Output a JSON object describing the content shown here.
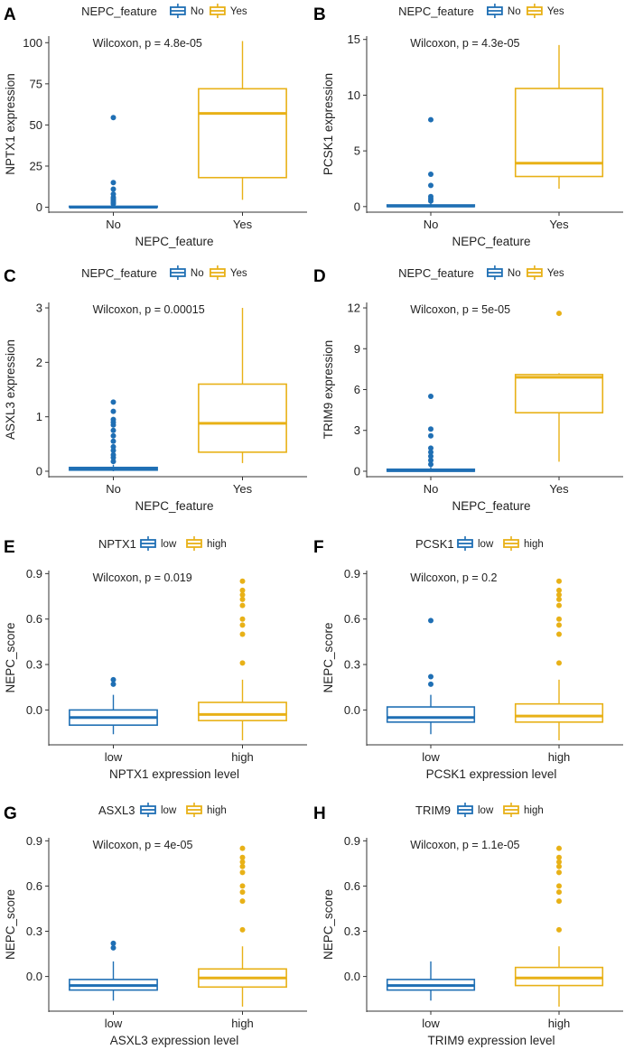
{
  "colors": {
    "group1": "#1f6fb4",
    "group2": "#e8b117",
    "axis": "#333333",
    "text": "#222222"
  },
  "chart_data": [
    {
      "type": "box",
      "panel_label": "A",
      "legend": {
        "title": "NEPC_feature",
        "entries": [
          "No",
          "Yes"
        ]
      },
      "annotation": "Wilcoxon, p = 4.8e-05",
      "xlabel": "NEPC_feature",
      "ylabel": "NPTX1 expression",
      "categories": [
        "No",
        "Yes"
      ],
      "ylim": [
        -3,
        104
      ],
      "yticks": [
        0,
        25,
        50,
        75,
        100
      ],
      "boxes": [
        {
          "q1": 0,
          "median": 0,
          "q3": 0.6,
          "whisker_low": 0,
          "whisker_high": 1.2,
          "outliers": [
            2,
            3,
            4,
            5,
            6,
            8,
            11,
            15,
            54.5
          ]
        },
        {
          "q1": 18,
          "median": 57,
          "q3": 72,
          "whisker_low": 4.5,
          "whisker_high": 101,
          "outliers": []
        }
      ]
    },
    {
      "type": "box",
      "panel_label": "B",
      "legend": {
        "title": "NEPC_feature",
        "entries": [
          "No",
          "Yes"
        ]
      },
      "annotation": "Wilcoxon, p = 4.3e-05",
      "xlabel": "NEPC_feature",
      "ylabel": "PCSK1 expression",
      "categories": [
        "No",
        "Yes"
      ],
      "ylim": [
        -0.5,
        15.3
      ],
      "yticks": [
        0,
        5,
        10,
        15
      ],
      "boxes": [
        {
          "q1": 0,
          "median": 0.05,
          "q3": 0.15,
          "whisker_low": 0,
          "whisker_high": 0.3,
          "outliers": [
            0.5,
            0.7,
            0.9,
            1.9,
            2.9,
            7.8
          ]
        },
        {
          "q1": 2.7,
          "median": 3.9,
          "q3": 10.6,
          "whisker_low": 1.6,
          "whisker_high": 14.5,
          "outliers": []
        }
      ]
    },
    {
      "type": "box",
      "panel_label": "C",
      "legend": {
        "title": "NEPC_feature",
        "entries": [
          "No",
          "Yes"
        ]
      },
      "annotation": "Wilcoxon, p = 0.00015",
      "xlabel": "NEPC_feature",
      "ylabel": "ASXL3 expression",
      "categories": [
        "No",
        "Yes"
      ],
      "ylim": [
        -0.1,
        3.1
      ],
      "yticks": [
        0,
        1,
        2,
        3
      ],
      "boxes": [
        {
          "q1": 0.02,
          "median": 0.04,
          "q3": 0.07,
          "whisker_low": 0,
          "whisker_high": 0.12,
          "outliers": [
            0.18,
            0.25,
            0.3,
            0.38,
            0.45,
            0.55,
            0.65,
            0.75,
            0.85,
            0.9,
            0.95,
            1.1,
            1.27
          ]
        },
        {
          "q1": 0.35,
          "median": 0.88,
          "q3": 1.6,
          "whisker_low": 0.15,
          "whisker_high": 3.0,
          "outliers": []
        }
      ]
    },
    {
      "type": "box",
      "panel_label": "D",
      "legend": {
        "title": "NEPC_feature",
        "entries": [
          "No",
          "Yes"
        ]
      },
      "annotation": "Wilcoxon, p = 5e-05",
      "xlabel": "NEPC_feature",
      "ylabel": "TRIM9 expression",
      "categories": [
        "No",
        "Yes"
      ],
      "ylim": [
        -0.4,
        12.4
      ],
      "yticks": [
        0,
        3,
        6,
        9,
        12
      ],
      "boxes": [
        {
          "q1": 0,
          "median": 0.05,
          "q3": 0.15,
          "whisker_low": 0,
          "whisker_high": 0.3,
          "outliers": [
            0.5,
            0.8,
            1.1,
            1.4,
            1.7,
            2.6,
            3.1,
            5.5
          ]
        },
        {
          "q1": 4.3,
          "median": 6.9,
          "q3": 7.1,
          "whisker_low": 0.7,
          "whisker_high": 7.2,
          "outliers": [
            11.6
          ]
        }
      ]
    },
    {
      "type": "box",
      "panel_label": "E",
      "legend": {
        "title": "NPTX1",
        "entries": [
          "low",
          "high"
        ]
      },
      "annotation": "Wilcoxon, p = 0.019",
      "xlabel": "NPTX1 expression level",
      "ylabel": "NEPC_score",
      "categories": [
        "low",
        "high"
      ],
      "ylim": [
        -0.23,
        0.92
      ],
      "yticks": [
        0.0,
        0.3,
        0.6,
        0.9
      ],
      "ytick_labels": [
        "0.0",
        "0.3",
        "0.6",
        "0.9"
      ],
      "boxes": [
        {
          "q1": -0.1,
          "median": -0.05,
          "q3": 0.0,
          "whisker_low": -0.16,
          "whisker_high": 0.1,
          "outliers": [
            0.17,
            0.2
          ]
        },
        {
          "q1": -0.07,
          "median": -0.03,
          "q3": 0.05,
          "whisker_low": -0.2,
          "whisker_high": 0.2,
          "outliers": [
            0.31,
            0.5,
            0.56,
            0.6,
            0.69,
            0.73,
            0.76,
            0.79,
            0.85
          ]
        }
      ]
    },
    {
      "type": "box",
      "panel_label": "F",
      "legend": {
        "title": "PCSK1",
        "entries": [
          "low",
          "high"
        ]
      },
      "annotation": "Wilcoxon, p = 0.2",
      "xlabel": "PCSK1 expression level",
      "ylabel": "NEPC_score",
      "categories": [
        "low",
        "high"
      ],
      "ylim": [
        -0.23,
        0.92
      ],
      "yticks": [
        0.0,
        0.3,
        0.6,
        0.9
      ],
      "ytick_labels": [
        "0.0",
        "0.3",
        "0.6",
        "0.9"
      ],
      "boxes": [
        {
          "q1": -0.08,
          "median": -0.05,
          "q3": 0.02,
          "whisker_low": -0.16,
          "whisker_high": 0.1,
          "outliers": [
            0.17,
            0.22,
            0.59
          ]
        },
        {
          "q1": -0.08,
          "median": -0.04,
          "q3": 0.04,
          "whisker_low": -0.2,
          "whisker_high": 0.2,
          "outliers": [
            0.31,
            0.5,
            0.56,
            0.6,
            0.69,
            0.73,
            0.76,
            0.79,
            0.85
          ]
        }
      ]
    },
    {
      "type": "box",
      "panel_label": "G",
      "legend": {
        "title": "ASXL3",
        "entries": [
          "low",
          "high"
        ]
      },
      "annotation": "Wilcoxon, p = 4e-05",
      "xlabel": "ASXL3 expression level",
      "ylabel": "NEPC_score",
      "categories": [
        "low",
        "high"
      ],
      "ylim": [
        -0.23,
        0.92
      ],
      "yticks": [
        0.0,
        0.3,
        0.6,
        0.9
      ],
      "ytick_labels": [
        "0.0",
        "0.3",
        "0.6",
        "0.9"
      ],
      "boxes": [
        {
          "q1": -0.09,
          "median": -0.06,
          "q3": -0.02,
          "whisker_low": -0.16,
          "whisker_high": 0.1,
          "outliers": [
            0.19,
            0.22
          ]
        },
        {
          "q1": -0.07,
          "median": -0.01,
          "q3": 0.05,
          "whisker_low": -0.2,
          "whisker_high": 0.2,
          "outliers": [
            0.31,
            0.5,
            0.56,
            0.6,
            0.69,
            0.73,
            0.76,
            0.79,
            0.85
          ]
        }
      ]
    },
    {
      "type": "box",
      "panel_label": "H",
      "legend": {
        "title": "TRIM9",
        "entries": [
          "low",
          "high"
        ]
      },
      "annotation": "Wilcoxon, p = 1.1e-05",
      "xlabel": "TRIM9 expression level",
      "ylabel": "NEPC_score",
      "categories": [
        "low",
        "high"
      ],
      "ylim": [
        -0.23,
        0.92
      ],
      "yticks": [
        0.0,
        0.3,
        0.6,
        0.9
      ],
      "ytick_labels": [
        "0.0",
        "0.3",
        "0.6",
        "0.9"
      ],
      "boxes": [
        {
          "q1": -0.09,
          "median": -0.06,
          "q3": -0.02,
          "whisker_low": -0.16,
          "whisker_high": 0.1,
          "outliers": []
        },
        {
          "q1": -0.06,
          "median": -0.01,
          "q3": 0.06,
          "whisker_low": -0.2,
          "whisker_high": 0.2,
          "outliers": [
            0.31,
            0.5,
            0.56,
            0.6,
            0.69,
            0.73,
            0.76,
            0.79,
            0.85
          ]
        }
      ]
    }
  ]
}
